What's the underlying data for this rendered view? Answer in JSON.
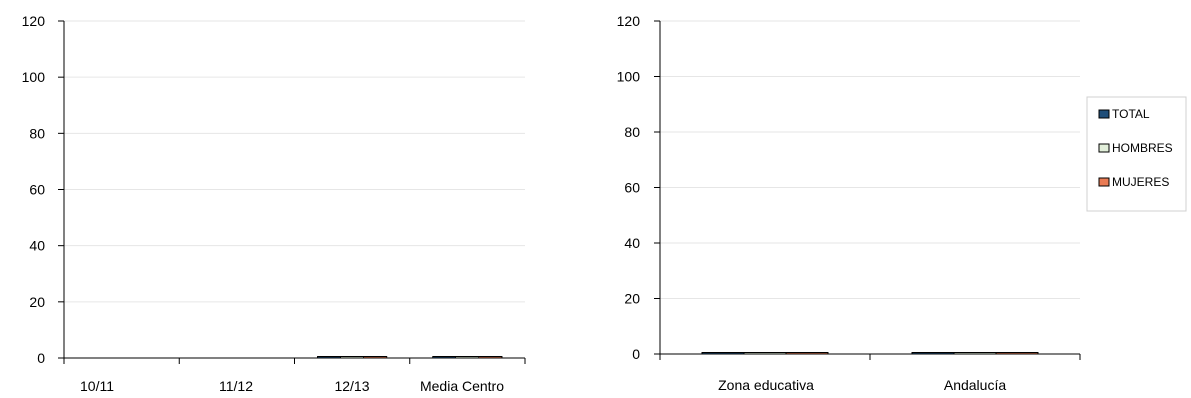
{
  "chart_data": [
    {
      "type": "bar",
      "categories": [
        "10/11",
        "11/12",
        "12/13",
        "Media Centro"
      ],
      "series": [
        {
          "name": "TOTAL",
          "values": [
            0,
            0,
            0.5,
            0.5
          ]
        },
        {
          "name": "HOMBRES",
          "values": [
            0,
            0,
            0.5,
            0.5
          ]
        },
        {
          "name": "MUJERES",
          "values": [
            0,
            0,
            0.5,
            0.5
          ]
        }
      ],
      "ylim": [
        0,
        120
      ],
      "yticks": [
        0,
        20,
        40,
        60,
        80,
        100,
        120
      ],
      "grid": true,
      "title": "",
      "xlabel": "",
      "ylabel": ""
    },
    {
      "type": "bar",
      "categories": [
        "Zona educativa",
        "Andalucía"
      ],
      "series": [
        {
          "name": "TOTAL",
          "values": [
            0.5,
            0.5
          ]
        },
        {
          "name": "HOMBRES",
          "values": [
            0.5,
            0.5
          ]
        },
        {
          "name": "MUJERES",
          "values": [
            0.5,
            0.5
          ]
        }
      ],
      "ylim": [
        0,
        120
      ],
      "yticks": [
        0,
        20,
        40,
        60,
        80,
        100,
        120
      ],
      "grid": true,
      "title": "",
      "xlabel": "",
      "ylabel": "",
      "legend_position": "right"
    }
  ],
  "legend": {
    "items": [
      {
        "label": "TOTAL",
        "color": "#1F4E79"
      },
      {
        "label": "HOMBRES",
        "color": "#E2EFDA"
      },
      {
        "label": "MUJERES",
        "color": "#E97B54"
      }
    ]
  }
}
